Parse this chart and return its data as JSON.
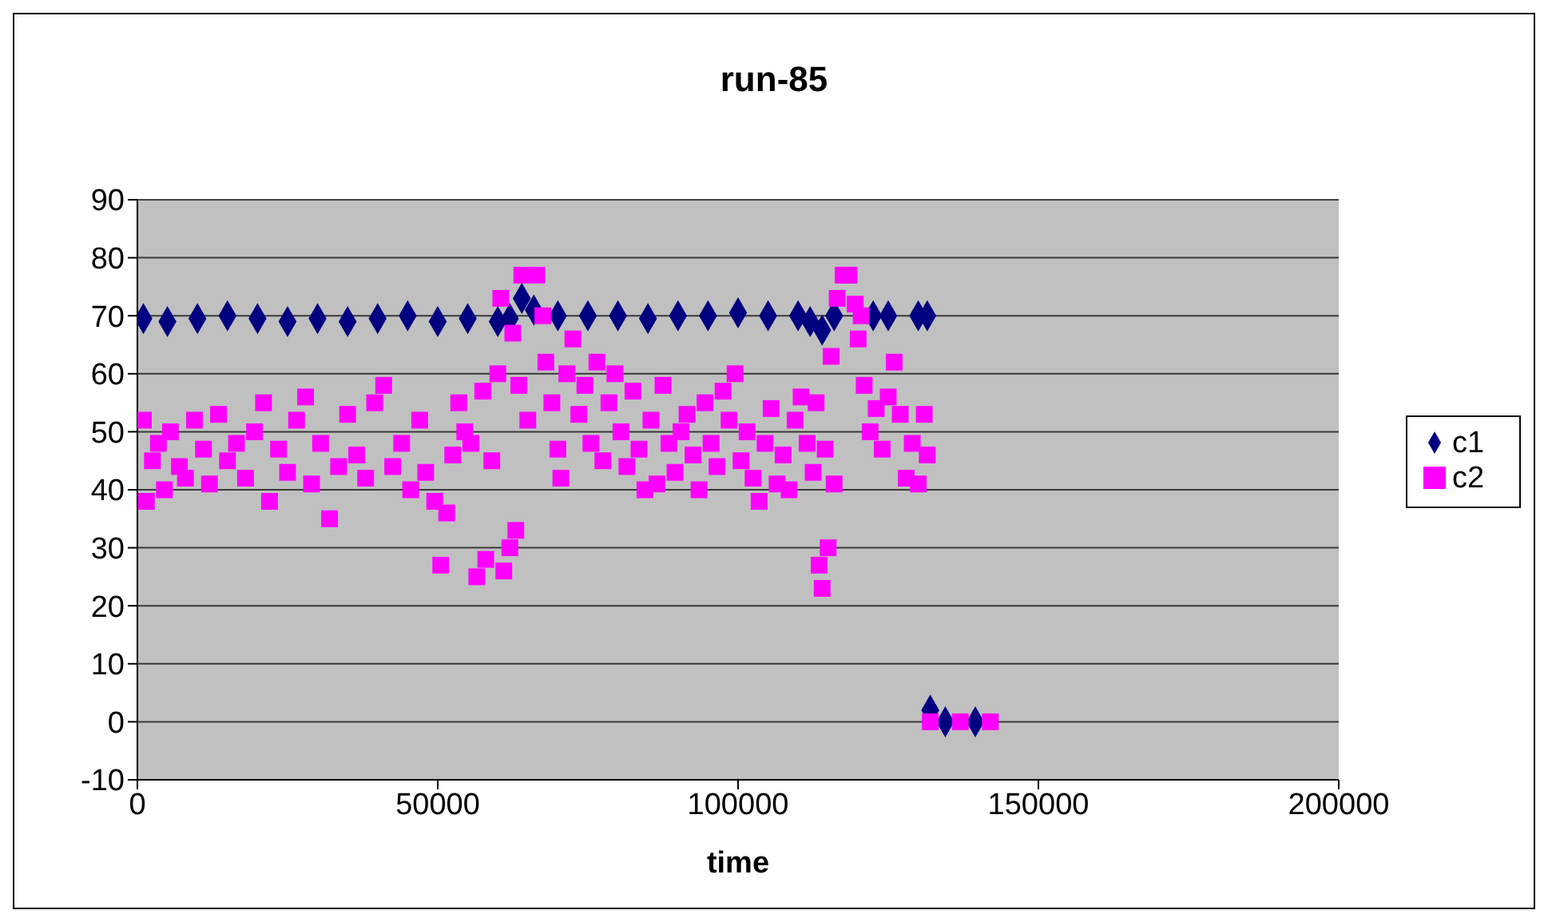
{
  "chart_data": {
    "type": "scatter",
    "title": "run-85",
    "xlabel": "time",
    "xlim": [
      0,
      200000
    ],
    "xticks": [
      0,
      50000,
      100000,
      150000,
      200000
    ],
    "ylim": [
      -10,
      90
    ],
    "yticks": [
      -10,
      0,
      10,
      20,
      30,
      40,
      50,
      60,
      70,
      80,
      90
    ],
    "grid": "y",
    "legend": "right",
    "series": [
      {
        "name": "c1",
        "color": "#000080",
        "marker": "diamond",
        "x": [
          1000,
          5000,
          10000,
          15000,
          20000,
          25000,
          30000,
          35000,
          40000,
          45000,
          50000,
          55000,
          60000,
          62000,
          64000,
          66000,
          70000,
          75000,
          80000,
          85000,
          90000,
          95000,
          100000,
          105000,
          110000,
          112000,
          114000,
          116000,
          122500,
          125000,
          130000,
          131500,
          132000,
          134500,
          139500
        ],
        "values": [
          69.5,
          69,
          69.5,
          70,
          69.5,
          69,
          69.5,
          69,
          69.5,
          70,
          69,
          69.5,
          69,
          69.5,
          73,
          71,
          70,
          70,
          70,
          69.5,
          70,
          70,
          70.5,
          70,
          70,
          69,
          67.5,
          70,
          70,
          70,
          70,
          70,
          2,
          0,
          0
        ]
      },
      {
        "name": "c2",
        "color": "#ff00ff",
        "marker": "square",
        "x": [
          1000,
          1500,
          2500,
          3500,
          4500,
          5500,
          7000,
          8000,
          9500,
          11000,
          12000,
          13500,
          15000,
          16500,
          18000,
          19500,
          21000,
          22000,
          23500,
          25000,
          26500,
          28000,
          29000,
          30500,
          32000,
          33500,
          35000,
          36500,
          38000,
          39500,
          41000,
          42500,
          44000,
          45500,
          47000,
          48000,
          49500,
          50500,
          51500,
          52500,
          53500,
          54500,
          55500,
          56500,
          57500,
          58000,
          59000,
          60000,
          60500,
          61000,
          62000,
          62500,
          63000,
          63500,
          64000,
          65000,
          66500,
          67500,
          68000,
          69000,
          70000,
          70500,
          71500,
          72500,
          73500,
          74500,
          75500,
          76500,
          77500,
          78500,
          79500,
          80500,
          81500,
          82500,
          83500,
          84500,
          85500,
          86500,
          87500,
          88500,
          89500,
          90500,
          91500,
          92500,
          93500,
          94500,
          95500,
          96500,
          97500,
          98500,
          99500,
          100500,
          101500,
          102500,
          103500,
          104500,
          105500,
          106500,
          107500,
          108500,
          109500,
          110500,
          111500,
          112500,
          113000,
          113500,
          114000,
          114500,
          115000,
          115500,
          116000,
          116500,
          117500,
          118500,
          119500,
          120000,
          120500,
          121000,
          122000,
          123000,
          124000,
          125000,
          126000,
          127000,
          128000,
          129000,
          130000,
          131000,
          131500,
          132000,
          137000,
          142000
        ],
        "values": [
          52,
          38,
          45,
          48,
          40,
          50,
          44,
          42,
          52,
          47,
          41,
          53,
          45,
          48,
          42,
          50,
          55,
          38,
          47,
          43,
          52,
          56,
          41,
          48,
          35,
          44,
          53,
          46,
          42,
          55,
          58,
          44,
          48,
          40,
          52,
          43,
          38,
          27,
          36,
          46,
          55,
          50,
          48,
          25,
          57,
          28,
          45,
          60,
          73,
          26,
          30,
          67,
          33,
          58,
          77,
          52,
          77,
          70,
          62,
          55,
          47,
          42,
          60,
          66,
          53,
          58,
          48,
          62,
          45,
          55,
          60,
          50,
          44,
          57,
          47,
          40,
          52,
          41,
          58,
          48,
          43,
          50,
          53,
          46,
          40,
          55,
          48,
          44,
          57,
          52,
          60,
          45,
          50,
          42,
          38,
          48,
          54,
          41,
          46,
          40,
          52,
          56,
          48,
          43,
          55,
          27,
          23,
          47,
          30,
          63,
          41,
          73,
          77,
          77,
          72,
          66,
          70,
          58,
          50,
          54,
          47,
          56,
          62,
          53,
          42,
          48,
          41,
          53,
          46,
          0,
          0,
          0
        ]
      }
    ]
  }
}
